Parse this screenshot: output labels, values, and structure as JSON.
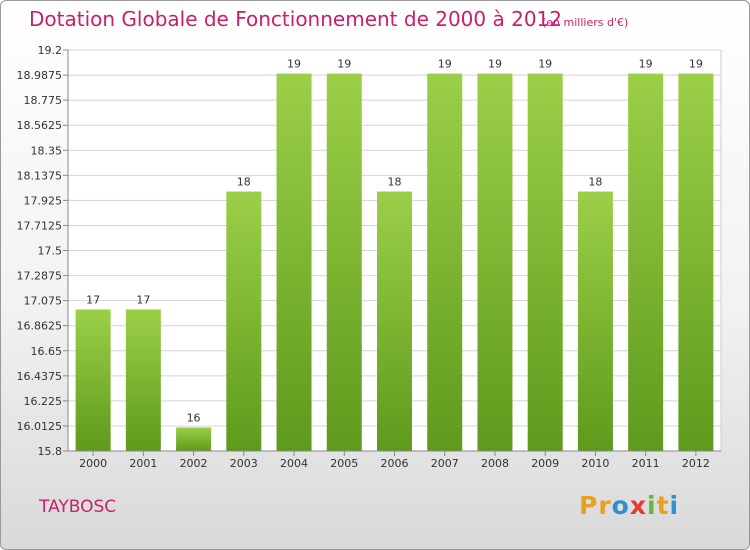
{
  "header": {
    "title": "Dotation Globale de Fonctionnement de 2000 à 2012",
    "subtitle": "(en milliers d'€)"
  },
  "footer": {
    "place": "TAYBOSC",
    "logo_letters": [
      "P",
      "r",
      "o",
      "x",
      "i",
      "t",
      "i"
    ],
    "logo_colors": [
      "#e8a020",
      "#e8a020",
      "#2f8fd0",
      "#e83a2a",
      "#6cb33e",
      "#e8a020",
      "#2f8fd0"
    ]
  },
  "chart_data": {
    "type": "bar",
    "title": "Dotation Globale de Fonctionnement de 2000 à 2012",
    "subtitle": "(en milliers d'€)",
    "categories": [
      "2000",
      "2001",
      "2002",
      "2003",
      "2004",
      "2005",
      "2006",
      "2007",
      "2008",
      "2009",
      "2010",
      "2011",
      "2012"
    ],
    "values": [
      17,
      17,
      16,
      18,
      19,
      19,
      18,
      19,
      19,
      19,
      18,
      19,
      19
    ],
    "value_labels": [
      "17",
      "17",
      "16",
      "18",
      "19",
      "19",
      "18",
      "19",
      "19",
      "19",
      "18",
      "19",
      "19"
    ],
    "ylim": [
      15.8,
      19.2
    ],
    "yticks": [
      15.8,
      16.0125,
      16.225,
      16.4375,
      16.65,
      16.8625,
      17.075,
      17.2875,
      17.5,
      17.7125,
      17.925,
      18.1375,
      18.35,
      18.5625,
      18.775,
      18.9875,
      19.2
    ],
    "ytick_labels": [
      "15.8",
      "16.0125",
      "16.225",
      "16.4375",
      "16.65",
      "16.8625",
      "17.075",
      "17.2875",
      "17.5",
      "17.7125",
      "17.925",
      "18.1375",
      "18.35",
      "18.5625",
      "18.775",
      "18.9875",
      "19.2"
    ],
    "grid": true,
    "bar_color": "#7ab631",
    "bar_color_light": "#9ccf48",
    "bar_color_dark": "#5e9a1c"
  }
}
